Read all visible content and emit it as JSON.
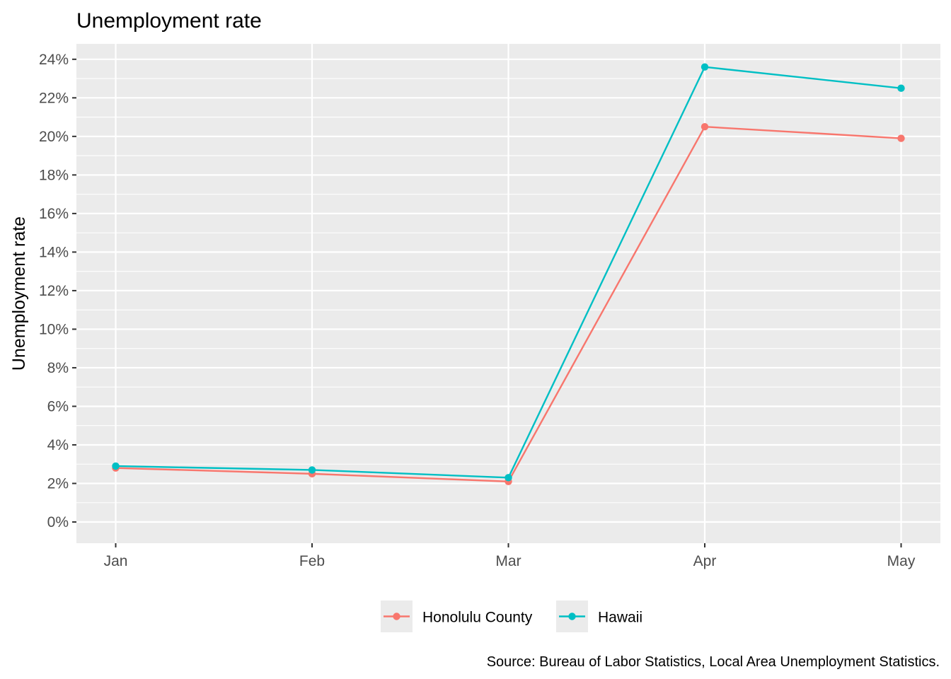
{
  "chart_data": {
    "type": "line",
    "title": "Unemployment rate",
    "xlabel": "",
    "ylabel": "Unemployment rate",
    "caption": "Source: Bureau of Labor Statistics, Local Area Unemployment Statistics.",
    "categories": [
      "Jan",
      "Feb",
      "Mar",
      "Apr",
      "May"
    ],
    "x_values": [
      1,
      2,
      3,
      4,
      5
    ],
    "ylim": [
      -0.011,
      0.248
    ],
    "y_ticks": [
      0,
      0.02,
      0.04,
      0.06,
      0.08,
      0.1,
      0.12,
      0.14,
      0.16,
      0.18,
      0.2,
      0.22,
      0.24
    ],
    "y_tick_labels": [
      "0%",
      "2%",
      "4%",
      "6%",
      "8%",
      "10%",
      "12%",
      "14%",
      "16%",
      "18%",
      "20%",
      "22%",
      "24%"
    ],
    "grid": true,
    "legend_position": "bottom",
    "series": [
      {
        "name": "Honolulu County",
        "color": "#F8766D",
        "values": [
          0.028,
          0.025,
          0.021,
          0.205,
          0.199
        ]
      },
      {
        "name": "Hawaii",
        "color": "#00BFC4",
        "values": [
          0.029,
          0.027,
          0.023,
          0.236,
          0.225
        ]
      }
    ]
  }
}
